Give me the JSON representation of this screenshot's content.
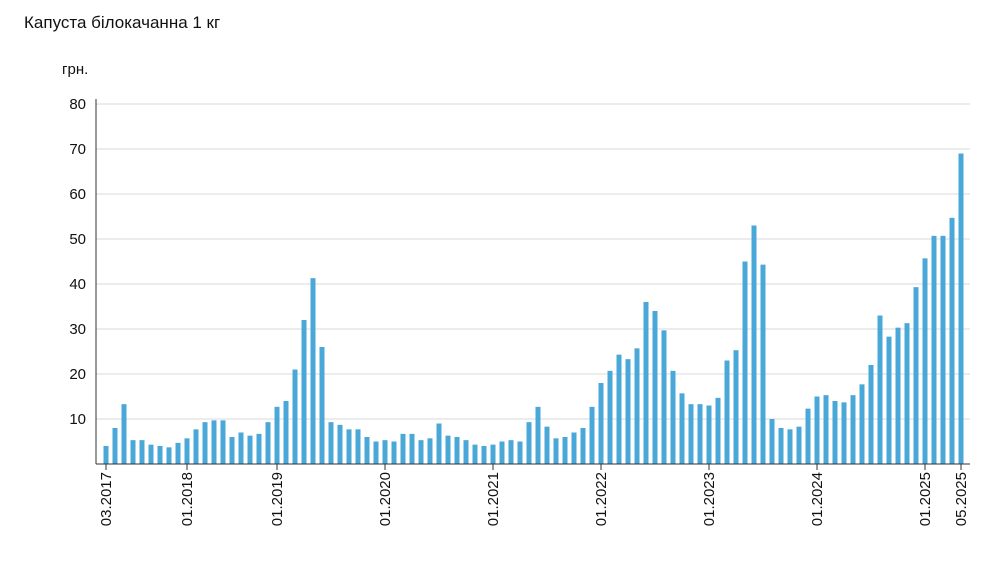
{
  "chart_data": {
    "type": "bar",
    "title": "Капуста білокачанна 1 кг",
    "y_label": "грн.",
    "categories": [
      "03.2017",
      null,
      null,
      null,
      null,
      null,
      null,
      null,
      null,
      "01.2018",
      null,
      null,
      null,
      null,
      null,
      null,
      null,
      null,
      null,
      "01.2019",
      null,
      null,
      null,
      null,
      null,
      null,
      null,
      null,
      null,
      null,
      null,
      "01.2020",
      null,
      null,
      null,
      null,
      null,
      null,
      null,
      null,
      null,
      null,
      null,
      "01.2021",
      null,
      null,
      null,
      null,
      null,
      null,
      null,
      null,
      null,
      null,
      null,
      "01.2022",
      null,
      null,
      null,
      null,
      null,
      null,
      null,
      null,
      null,
      null,
      null,
      "01.2023",
      null,
      null,
      null,
      null,
      null,
      null,
      null,
      null,
      null,
      null,
      null,
      "01.2024",
      null,
      null,
      null,
      null,
      null,
      null,
      null,
      null,
      null,
      null,
      null,
      "01.2025",
      null,
      null,
      null,
      "05.2025"
    ],
    "values": [
      4,
      8,
      13.3,
      5.3,
      5.3,
      4.3,
      4,
      3.7,
      4.7,
      5.7,
      7.7,
      9.3,
      9.7,
      9.7,
      6,
      7,
      6.3,
      6.7,
      9.3,
      12.7,
      14,
      21,
      32,
      41.3,
      26,
      9.3,
      8.7,
      7.7,
      7.7,
      6,
      5,
      5.3,
      5,
      6.7,
      6.7,
      5.3,
      5.7,
      9,
      6.3,
      6,
      5.3,
      4.3,
      4,
      4.3,
      5,
      5.3,
      5,
      9.3,
      12.7,
      8.3,
      5.7,
      6,
      7,
      8,
      12.7,
      18,
      20.7,
      24.3,
      23.3,
      25.7,
      36,
      34,
      29.7,
      20.7,
      15.7,
      13.3,
      13.3,
      13,
      14.7,
      23,
      25.3,
      45,
      53,
      44.3,
      10,
      8,
      7.7,
      8.3,
      12.3,
      15,
      15.3,
      14,
      13.7,
      15.3,
      17.7,
      22,
      33,
      28.3,
      30.3,
      31.3,
      39.3,
      45.7,
      50.7,
      50.7,
      54.7,
      69
    ],
    "color": "#4aa8d8",
    "ylim": [
      0,
      80
    ],
    "yticks": [
      10,
      20,
      30,
      40,
      50,
      60,
      70,
      80
    ],
    "grid": true
  }
}
